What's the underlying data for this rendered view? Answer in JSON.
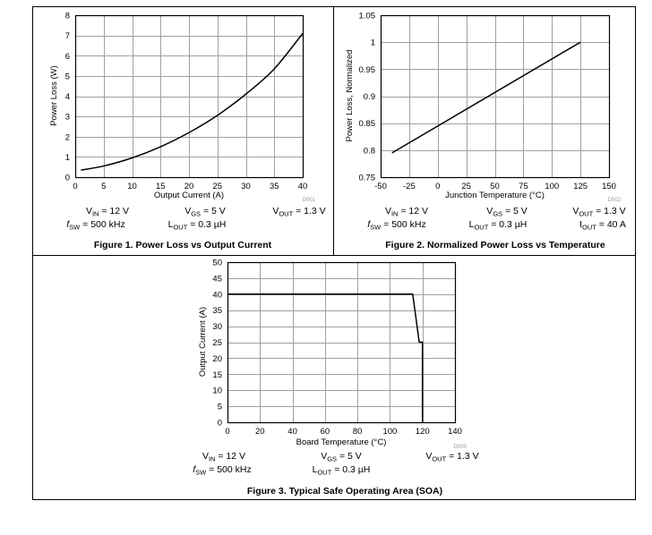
{
  "chart_data": [
    {
      "type": "line",
      "xlabel": "Output Current (A)",
      "ylabel": "Power Loss (W)",
      "xlim": [
        0,
        40
      ],
      "ylim": [
        0,
        8
      ],
      "xticks": [
        "0",
        "5",
        "10",
        "15",
        "20",
        "25",
        "30",
        "35",
        "40"
      ],
      "yticks": [
        "0",
        "1",
        "2",
        "3",
        "4",
        "5",
        "6",
        "7",
        "8"
      ],
      "grid": true,
      "series": [
        {
          "x": [
            1,
            5,
            10,
            15,
            20,
            25,
            30,
            35,
            40
          ],
          "y": [
            0.35,
            0.55,
            0.95,
            1.5,
            2.2,
            3.05,
            4.1,
            5.35,
            7.1
          ]
        }
      ],
      "fig_id": "D001",
      "conditions": [
        [
          "V",
          "IN",
          " = 12 V"
        ],
        [
          "V",
          "GS",
          " = 5 V"
        ],
        [
          "V",
          "OUT",
          " = 1.3 V"
        ],
        [
          "f",
          "SW",
          " = 500 kHz"
        ],
        [
          "L",
          "OUT",
          " = 0.3 µH"
        ]
      ],
      "caption": "Figure 1. Power Loss vs Output Current"
    },
    {
      "type": "line",
      "xlabel": "Junction Temperature (°C)",
      "ylabel": "Power Loss, Normalized",
      "xlim": [
        -50,
        150
      ],
      "ylim": [
        0.75,
        1.05
      ],
      "xticks": [
        "-50",
        "-25",
        "0",
        "25",
        "50",
        "75",
        "100",
        "125",
        "150"
      ],
      "yticks": [
        "0.75",
        "0.8",
        "0.85",
        "0.9",
        "0.95",
        "1",
        "1.05"
      ],
      "grid": true,
      "series": [
        {
          "x": [
            -40,
            125
          ],
          "y": [
            0.795,
            1.0
          ]
        }
      ],
      "fig_id": "D002",
      "conditions": [
        [
          "V",
          "IN",
          " = 12 V"
        ],
        [
          "V",
          "GS",
          " = 5 V"
        ],
        [
          "V",
          "OUT",
          " = 1.3 V"
        ],
        [
          "f",
          "SW",
          " = 500 kHz"
        ],
        [
          "L",
          "OUT",
          " = 0.3 µH"
        ],
        [
          "I",
          "OUT",
          " = 40 A"
        ]
      ],
      "caption": "Figure 2. Normalized Power Loss vs Temperature"
    },
    {
      "type": "line",
      "xlabel": "Board Temperature (°C)",
      "ylabel": "Output Current (A)",
      "xlim": [
        0,
        140
      ],
      "ylim": [
        0,
        50
      ],
      "xticks": [
        "0",
        "20",
        "40",
        "60",
        "80",
        "100",
        "120",
        "140"
      ],
      "yticks": [
        "0",
        "5",
        "10",
        "15",
        "20",
        "25",
        "30",
        "35",
        "40",
        "45",
        "50"
      ],
      "grid": true,
      "series": [
        {
          "x": [
            0,
            114,
            118,
            118,
            120,
            120
          ],
          "y": [
            40,
            40,
            25,
            25,
            25,
            0
          ]
        }
      ],
      "fig_id": "D005",
      "conditions": [
        [
          "V",
          "IN",
          " = 12 V"
        ],
        [
          "V",
          "GS",
          " = 5 V"
        ],
        [
          "V",
          "OUT",
          " = 1.3 V"
        ],
        [
          "f",
          "SW",
          " = 500 kHz"
        ],
        [
          "L",
          "OUT",
          " = 0.3 µH"
        ]
      ],
      "caption": "Figure 3. Typical Safe Operating Area (SOA)"
    }
  ]
}
